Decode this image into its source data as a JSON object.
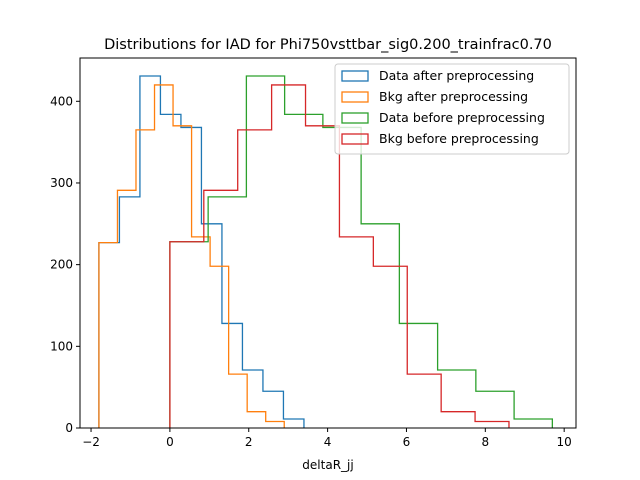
{
  "chart_data": {
    "type": "histogram",
    "title": "Distributions for IAD for Phi750vsttbar_sig0.200_trainfrac0.70",
    "xlabel": "deltaR_jj",
    "ylabel": "",
    "xlim": [
      -2.28,
      10.3
    ],
    "ylim": [
      0,
      453
    ],
    "xticks": [
      -2,
      0,
      2,
      4,
      6,
      8,
      10
    ],
    "yticks": [
      0,
      100,
      200,
      300,
      400
    ],
    "grid": false,
    "legend_position": "top-right",
    "series": [
      {
        "name": "Data after preprocessing",
        "color": "#1f77b4",
        "edges": [
          -1.8,
          -1.28,
          -0.76,
          -0.24,
          0.28,
          0.8,
          1.32,
          1.84,
          2.36,
          2.88,
          3.4
        ],
        "counts": [
          227,
          283,
          431,
          384,
          368,
          250,
          128,
          71,
          45,
          11
        ]
      },
      {
        "name": "Bkg after preprocessing",
        "color": "#ff7f0e",
        "edges": [
          -1.8,
          -1.33,
          -0.86,
          -0.39,
          0.08,
          0.55,
          1.02,
          1.49,
          1.96,
          2.43,
          2.9
        ],
        "counts": [
          227,
          291,
          365,
          420,
          370,
          234,
          198,
          66,
          20,
          8
        ]
      },
      {
        "name": "Data before preprocessing",
        "color": "#2ca02c",
        "edges": [
          0.0,
          0.97,
          1.94,
          2.91,
          3.88,
          4.85,
          5.82,
          6.79,
          7.76,
          8.73,
          9.7
        ],
        "counts": [
          228,
          283,
          431,
          384,
          368,
          250,
          128,
          71,
          45,
          11
        ]
      },
      {
        "name": "Bkg before preprocessing",
        "color": "#d62728",
        "edges": [
          0.0,
          0.86,
          1.72,
          2.58,
          3.44,
          4.3,
          5.16,
          6.02,
          6.88,
          7.74,
          8.6
        ],
        "counts": [
          228,
          291,
          365,
          420,
          370,
          234,
          198,
          66,
          20,
          8
        ]
      }
    ]
  }
}
